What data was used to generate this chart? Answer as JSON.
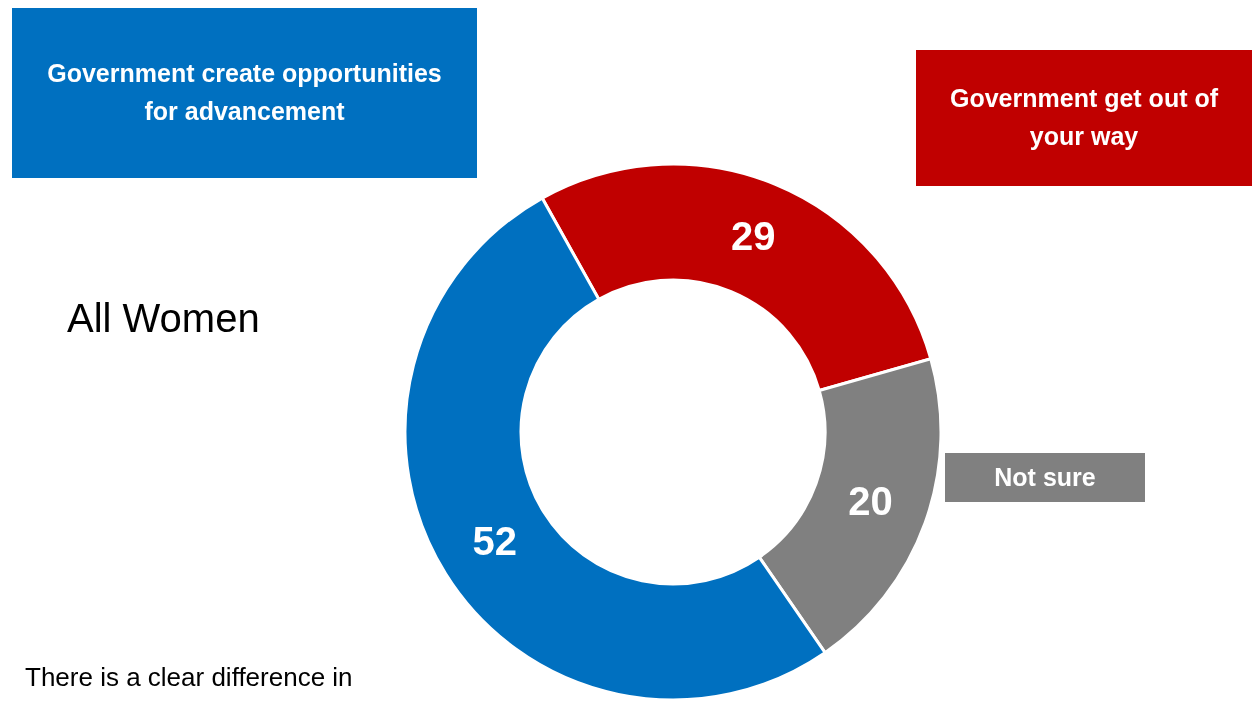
{
  "chart_data": {
    "type": "donut",
    "title": "All Women",
    "categories": [
      "Government get out of your way",
      "Not sure",
      "Government create opportunities for advancement"
    ],
    "values": [
      29,
      20,
      52
    ],
    "colors": [
      "#c00000",
      "#808080",
      "#0070c0"
    ],
    "data_labels": true,
    "annotations": [
      "There is a clear difference in"
    ]
  }
}
